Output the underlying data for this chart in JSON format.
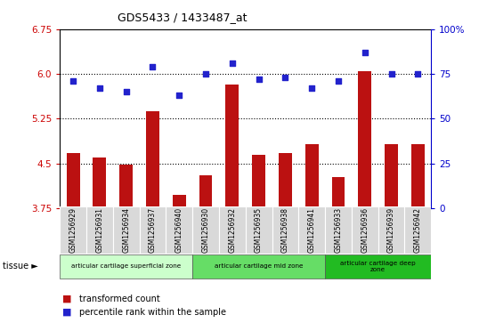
{
  "title": "GDS5433 / 1433487_at",
  "samples": [
    "GSM1256929",
    "GSM1256931",
    "GSM1256934",
    "GSM1256937",
    "GSM1256940",
    "GSM1256930",
    "GSM1256932",
    "GSM1256935",
    "GSM1256938",
    "GSM1256941",
    "GSM1256933",
    "GSM1256936",
    "GSM1256939",
    "GSM1256942"
  ],
  "bar_values": [
    4.68,
    4.6,
    4.48,
    5.38,
    3.97,
    4.3,
    5.82,
    4.65,
    4.67,
    4.82,
    4.28,
    6.04,
    4.82,
    4.82
  ],
  "dot_values": [
    71,
    67,
    65,
    79,
    63,
    75,
    81,
    72,
    73,
    67,
    71,
    87,
    75,
    75
  ],
  "ylim_left": [
    3.75,
    6.75
  ],
  "ylim_right": [
    0,
    100
  ],
  "yticks_left": [
    3.75,
    4.5,
    5.25,
    6.0,
    6.75
  ],
  "yticks_right": [
    0,
    25,
    50,
    75,
    100
  ],
  "hlines": [
    4.5,
    5.25,
    6.0
  ],
  "bar_color": "#bb1111",
  "dot_color": "#2222cc",
  "plot_bg_color": "#ffffff",
  "tick_bg_color": "#d9d9d9",
  "tissue_groups": [
    {
      "label": "articular cartilage superficial zone",
      "start": 0,
      "end": 5,
      "color": "#ccffcc"
    },
    {
      "label": "articular cartilage mid zone",
      "start": 5,
      "end": 10,
      "color": "#66dd66"
    },
    {
      "label": "articular cartilage deep\nzone",
      "start": 10,
      "end": 14,
      "color": "#22bb22"
    }
  ],
  "legend_bar_label": "transformed count",
  "legend_dot_label": "percentile rank within the sample",
  "tissue_label": "tissue",
  "left_tick_color": "#cc0000",
  "right_tick_color": "#0000cc"
}
